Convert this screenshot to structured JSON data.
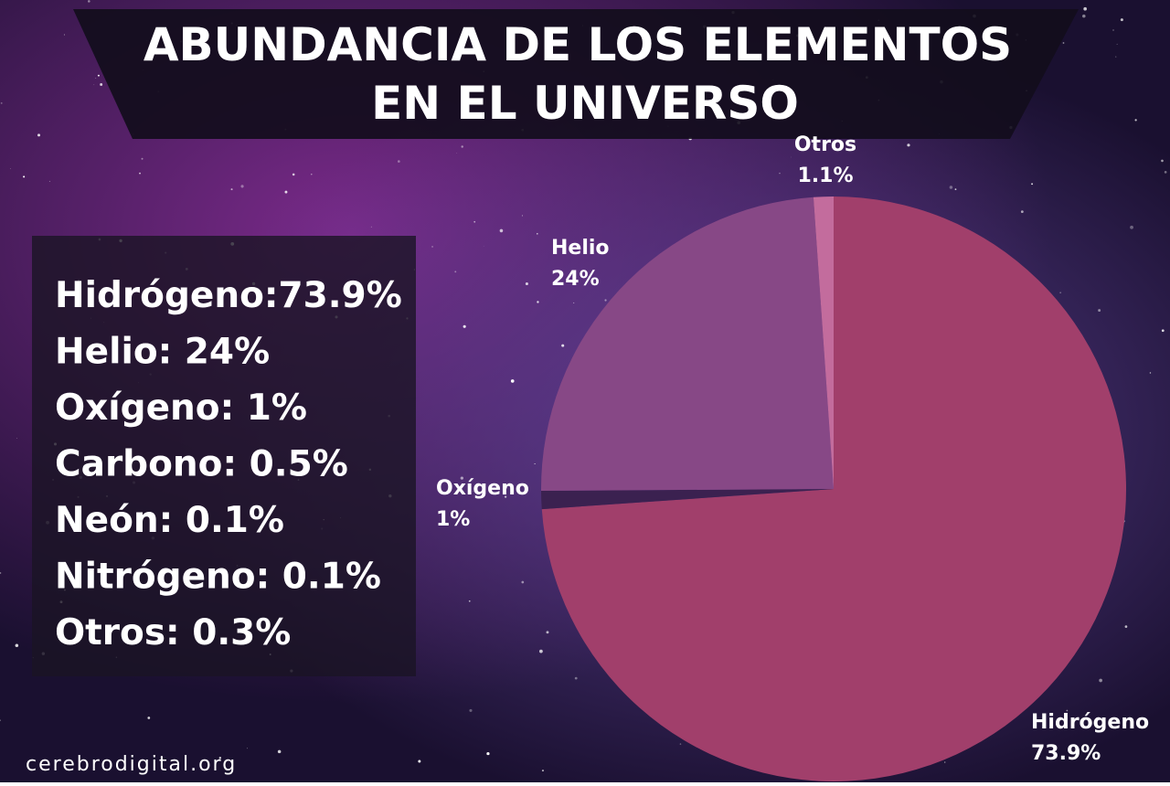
{
  "chart_data": {
    "type": "pie",
    "title": [
      "ABUNDANCIA DE LOS ELEMENTOS",
      "EN EL UNIVERSO"
    ],
    "categories": [
      "Hidrógeno",
      "Oxígeno",
      "Helio",
      "Otros"
    ],
    "values": [
      73.9,
      1,
      24,
      1.1
    ],
    "value_labels": [
      "73.9%",
      "1%",
      "24%",
      "1.1%"
    ],
    "colors": [
      "#a13f6b",
      "#3b2150",
      "#874886",
      "#c36c9d"
    ],
    "notes": [
      "Hidrógeno:73.9%",
      "Helio: 24%",
      "Oxígeno: 1%",
      "Carbono: 0.5%",
      "Neón: 0.1%",
      "Nitrógeno: 0.1%",
      "Otros: 0.3%"
    ],
    "source": "cerebrodigital.org"
  }
}
